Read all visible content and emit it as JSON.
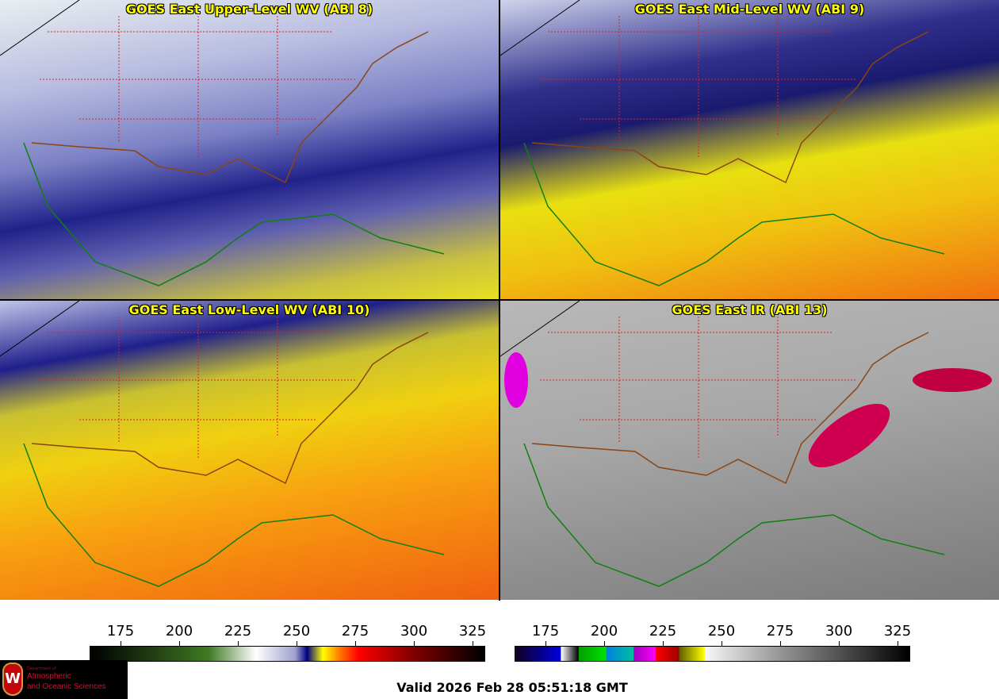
{
  "panels": [
    {
      "title": "GOES East Upper-Level WV (ABI 8)"
    },
    {
      "title": "GOES East Mid-Level WV (ABI 9)"
    },
    {
      "title": "GOES East Low-Level WV (ABI 10)"
    },
    {
      "title": "GOES East IR (ABI 13)"
    }
  ],
  "colorbars": [
    {
      "name": "water-vapor",
      "ticks": [
        "175",
        "200",
        "225",
        "250",
        "275",
        "300",
        "325"
      ]
    },
    {
      "name": "infrared",
      "ticks": [
        "175",
        "200",
        "225",
        "250",
        "275",
        "300",
        "325"
      ]
    }
  ],
  "logo": {
    "line1": "Department of",
    "line2": "Atmospheric",
    "line3": "and Oceanic Sciences",
    "crest": "W"
  },
  "valid_time": "Valid 2026 Feb 28 05:51:18 GMT",
  "colors": {
    "title": "#ffff00",
    "states": "#e02020",
    "coast": "#108010",
    "borders": "#8b4513"
  }
}
